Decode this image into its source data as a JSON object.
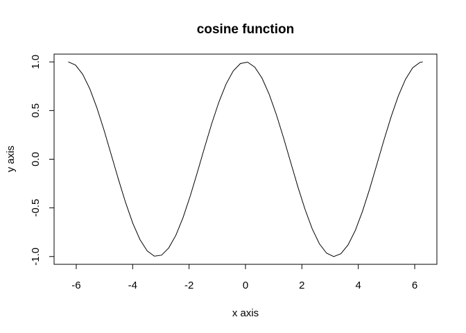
{
  "chart_data": {
    "type": "line",
    "title": "cosine function",
    "xlabel": "x axis",
    "ylabel": "y axis",
    "xlim": [
      -6.2832,
      6.2832
    ],
    "ylim": [
      -1,
      1
    ],
    "xticks": [
      -6,
      -4,
      -2,
      0,
      2,
      4,
      6
    ],
    "xtick_labels": [
      "-6",
      "-4",
      "-2",
      "0",
      "2",
      "4",
      "6"
    ],
    "yticks": [
      -1,
      -0.5,
      0,
      0.5,
      1
    ],
    "ytick_labels": [
      "-1.0",
      "-0.5",
      "0.0",
      "0.5",
      "1.0"
    ],
    "grid": false,
    "legend": "none",
    "line_color": "#000000",
    "series": [
      {
        "x": [
          -6.2832,
          -6.0288,
          -5.7744,
          -5.5201,
          -5.2657,
          -5.0113,
          -4.7569,
          -4.5025,
          -4.2481,
          -3.9938,
          -3.7394,
          -3.485,
          -3.2306,
          -2.9762,
          -2.7218,
          -2.4675,
          -2.2131,
          -1.9587,
          -1.7043,
          -1.4499,
          -1.1955,
          -0.9412,
          -0.6868,
          -0.4324,
          -0.178,
          0.0764,
          0.3308,
          0.5851,
          0.8395,
          1.0939,
          1.3483,
          1.6027,
          1.8571,
          2.1114,
          2.3658,
          2.6202,
          2.8746,
          3.129,
          3.3834,
          3.6377,
          3.8921,
          4.1465,
          4.4009,
          4.6553,
          4.9097,
          5.164,
          5.4184,
          5.6728,
          5.9272,
          6.1816,
          6.2832
        ],
        "y": [
          1.0,
          0.968,
          0.874,
          0.724,
          0.526,
          0.295,
          0.044,
          -0.209,
          -0.448,
          -0.659,
          -0.827,
          -0.942,
          -0.996,
          -0.986,
          -0.912,
          -0.781,
          -0.599,
          -0.378,
          -0.133,
          0.121,
          0.367,
          0.589,
          0.773,
          0.908,
          0.984,
          0.997,
          0.946,
          0.834,
          0.668,
          0.459,
          0.221,
          -0.032,
          -0.283,
          -0.515,
          -0.715,
          -0.869,
          -0.965,
          -1.0,
          -0.971,
          -0.88,
          -0.733,
          -0.537,
          -0.307,
          -0.056,
          0.197,
          0.437,
          0.65,
          0.821,
          0.939,
          0.994,
          1.0
        ]
      }
    ]
  }
}
